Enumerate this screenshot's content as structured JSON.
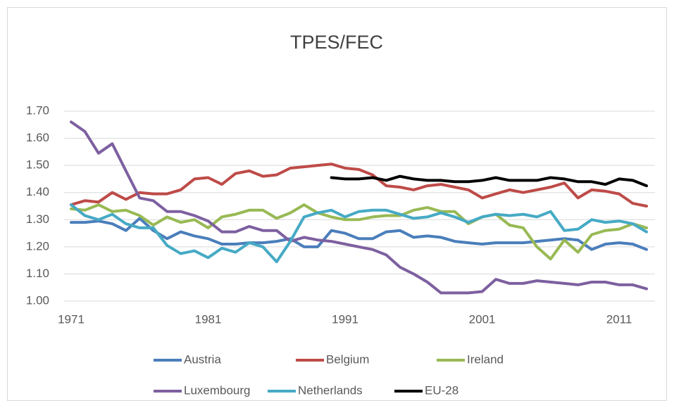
{
  "chart_data": {
    "type": "line",
    "title": "TPES/FEC",
    "categories": [
      "1971",
      null,
      null,
      null,
      null,
      null,
      null,
      null,
      null,
      null,
      "1981",
      null,
      null,
      null,
      null,
      null,
      null,
      null,
      null,
      null,
      "1991",
      null,
      null,
      null,
      null,
      null,
      null,
      null,
      null,
      null,
      "2001",
      null,
      null,
      null,
      null,
      null,
      null,
      null,
      null,
      null,
      "2011",
      null,
      null
    ],
    "ylim": [
      1.0,
      1.7
    ],
    "yticks": [
      {
        "value": 1.0,
        "label": "1.00"
      },
      {
        "value": 1.1,
        "label": "1.10"
      },
      {
        "value": 1.2,
        "label": "1.20"
      },
      {
        "value": 1.3,
        "label": "1.30"
      },
      {
        "value": 1.4,
        "label": "1.40"
      },
      {
        "value": 1.5,
        "label": "1.50"
      },
      {
        "value": 1.6,
        "label": "1.60"
      },
      {
        "value": 1.7,
        "label": "1.70"
      }
    ],
    "grid": true,
    "legend": "bottom",
    "series": [
      {
        "name": "Austria",
        "color": "#4a7ebb",
        "values": [
          1.29,
          1.29,
          1.295,
          1.285,
          1.26,
          1.305,
          1.26,
          1.23,
          1.255,
          1.24,
          1.23,
          1.21,
          1.21,
          1.215,
          1.215,
          1.22,
          1.23,
          1.2,
          1.2,
          1.26,
          1.25,
          1.23,
          1.23,
          1.255,
          1.26,
          1.235,
          1.24,
          1.235,
          1.22,
          1.215,
          1.21,
          1.215,
          1.215,
          1.215,
          1.22,
          1.225,
          1.23,
          1.225,
          1.19,
          1.21,
          1.215,
          1.21,
          1.19
        ]
      },
      {
        "name": "Belgium",
        "color": "#be4b48",
        "values": [
          1.355,
          1.37,
          1.365,
          1.4,
          1.375,
          1.4,
          1.395,
          1.395,
          1.41,
          1.45,
          1.455,
          1.43,
          1.47,
          1.48,
          1.46,
          1.465,
          1.49,
          1.495,
          1.5,
          1.505,
          1.49,
          1.485,
          1.465,
          1.425,
          1.42,
          1.41,
          1.425,
          1.43,
          1.42,
          1.41,
          1.38,
          1.395,
          1.41,
          1.4,
          1.41,
          1.42,
          1.435,
          1.38,
          1.41,
          1.405,
          1.395,
          1.36,
          1.35
        ]
      },
      {
        "name": "Ireland",
        "color": "#98b954",
        "values": [
          1.34,
          1.335,
          1.355,
          1.33,
          1.335,
          1.315,
          1.28,
          1.31,
          1.29,
          1.3,
          1.27,
          1.31,
          1.32,
          1.335,
          1.335,
          1.305,
          1.325,
          1.355,
          1.325,
          1.31,
          1.3,
          1.3,
          1.31,
          1.315,
          1.315,
          1.335,
          1.345,
          1.33,
          1.33,
          1.285,
          1.31,
          1.32,
          1.28,
          1.27,
          1.2,
          1.155,
          1.225,
          1.18,
          1.245,
          1.26,
          1.265,
          1.285,
          1.27
        ]
      },
      {
        "name": "Luxembourg",
        "color": "#7d60a0",
        "values": [
          1.66,
          1.625,
          1.545,
          1.58,
          1.48,
          1.38,
          1.37,
          1.33,
          1.33,
          1.315,
          1.295,
          1.255,
          1.255,
          1.275,
          1.26,
          1.26,
          1.22,
          1.235,
          1.225,
          1.22,
          1.21,
          1.2,
          1.19,
          1.17,
          1.125,
          1.1,
          1.07,
          1.03,
          1.03,
          1.03,
          1.035,
          1.08,
          1.065,
          1.065,
          1.075,
          1.07,
          1.065,
          1.06,
          1.07,
          1.07,
          1.06,
          1.06,
          1.045
        ]
      },
      {
        "name": "Netherlands",
        "color": "#46aac5",
        "values": [
          1.355,
          1.315,
          1.3,
          1.32,
          1.285,
          1.27,
          1.27,
          1.205,
          1.175,
          1.185,
          1.16,
          1.195,
          1.18,
          1.215,
          1.2,
          1.145,
          1.22,
          1.31,
          1.325,
          1.335,
          1.31,
          1.33,
          1.335,
          1.335,
          1.32,
          1.305,
          1.31,
          1.325,
          1.31,
          1.29,
          1.31,
          1.32,
          1.315,
          1.32,
          1.31,
          1.33,
          1.26,
          1.265,
          1.3,
          1.29,
          1.295,
          1.285,
          1.255
        ]
      },
      {
        "name": "EU-28",
        "color": "#000000",
        "values": [
          null,
          null,
          null,
          null,
          null,
          null,
          null,
          null,
          null,
          null,
          null,
          null,
          null,
          null,
          null,
          null,
          null,
          null,
          null,
          1.455,
          1.45,
          1.45,
          1.455,
          1.445,
          1.46,
          1.45,
          1.445,
          1.445,
          1.44,
          1.44,
          1.445,
          1.455,
          1.445,
          1.445,
          1.445,
          1.455,
          1.45,
          1.44,
          1.44,
          1.43,
          1.45,
          1.445,
          1.425
        ]
      }
    ]
  }
}
